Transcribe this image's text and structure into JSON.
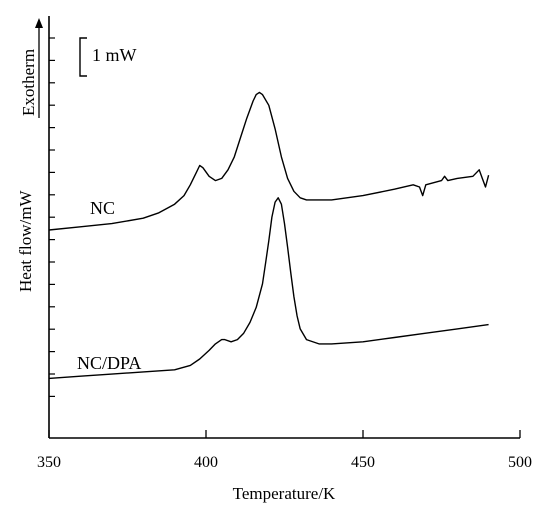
{
  "chart_data": {
    "type": "line",
    "title": "",
    "xlabel": "Temperature/K",
    "ylabel": "Heat flow/mW",
    "xlim": [
      350,
      500
    ],
    "x_ticks": [
      "350",
      "400",
      "450",
      "500"
    ],
    "y_tick_labels_shown": false,
    "scale_bar_label": "1 mW",
    "exotherm_label": "Exotherm",
    "grid": false,
    "legend": "none",
    "series": [
      {
        "name": "NC",
        "points": [
          [
            350,
            0.0
          ],
          [
            360,
            0.15
          ],
          [
            370,
            0.3
          ],
          [
            380,
            0.55
          ],
          [
            385,
            0.8
          ],
          [
            390,
            1.2
          ],
          [
            393,
            1.6
          ],
          [
            395,
            2.1
          ],
          [
            397,
            2.7
          ],
          [
            398,
            3.0
          ],
          [
            399,
            2.9
          ],
          [
            401,
            2.5
          ],
          [
            403,
            2.3
          ],
          [
            405,
            2.4
          ],
          [
            407,
            2.8
          ],
          [
            409,
            3.4
          ],
          [
            411,
            4.3
          ],
          [
            413,
            5.2
          ],
          [
            415,
            6.0
          ],
          [
            416,
            6.3
          ],
          [
            417,
            6.4
          ],
          [
            418,
            6.3
          ],
          [
            420,
            5.8
          ],
          [
            422,
            4.7
          ],
          [
            424,
            3.4
          ],
          [
            426,
            2.4
          ],
          [
            428,
            1.8
          ],
          [
            430,
            1.5
          ],
          [
            432,
            1.4
          ],
          [
            440,
            1.4
          ],
          [
            450,
            1.6
          ],
          [
            460,
            1.9
          ],
          [
            466,
            2.1
          ],
          [
            468,
            2.0
          ],
          [
            469,
            1.6
          ],
          [
            470,
            2.1
          ],
          [
            475,
            2.3
          ],
          [
            476,
            2.5
          ],
          [
            477,
            2.3
          ],
          [
            480,
            2.4
          ],
          [
            485,
            2.5
          ],
          [
            487,
            2.8
          ],
          [
            488,
            2.4
          ],
          [
            489,
            2.0
          ],
          [
            490,
            2.55
          ]
        ]
      },
      {
        "name": "NC/DPA",
        "points": [
          [
            350,
            -6.9
          ],
          [
            360,
            -6.8
          ],
          [
            370,
            -6.7
          ],
          [
            380,
            -6.6
          ],
          [
            390,
            -6.5
          ],
          [
            395,
            -6.3
          ],
          [
            398,
            -6.0
          ],
          [
            401,
            -5.6
          ],
          [
            403,
            -5.3
          ],
          [
            405,
            -5.1
          ],
          [
            406,
            -5.1
          ],
          [
            408,
            -5.2
          ],
          [
            410,
            -5.1
          ],
          [
            412,
            -4.8
          ],
          [
            414,
            -4.3
          ],
          [
            416,
            -3.6
          ],
          [
            418,
            -2.5
          ],
          [
            419,
            -1.5
          ],
          [
            420,
            -0.5
          ],
          [
            421,
            0.6
          ],
          [
            422,
            1.3
          ],
          [
            423,
            1.5
          ],
          [
            424,
            1.2
          ],
          [
            425,
            0.3
          ],
          [
            426,
            -0.8
          ],
          [
            427,
            -2.0
          ],
          [
            428,
            -3.1
          ],
          [
            429,
            -4.0
          ],
          [
            430,
            -4.6
          ],
          [
            432,
            -5.1
          ],
          [
            436,
            -5.3
          ],
          [
            440,
            -5.3
          ],
          [
            450,
            -5.2
          ],
          [
            460,
            -5.0
          ],
          [
            470,
            -4.8
          ],
          [
            480,
            -4.6
          ],
          [
            490,
            -4.4
          ]
        ]
      }
    ]
  }
}
